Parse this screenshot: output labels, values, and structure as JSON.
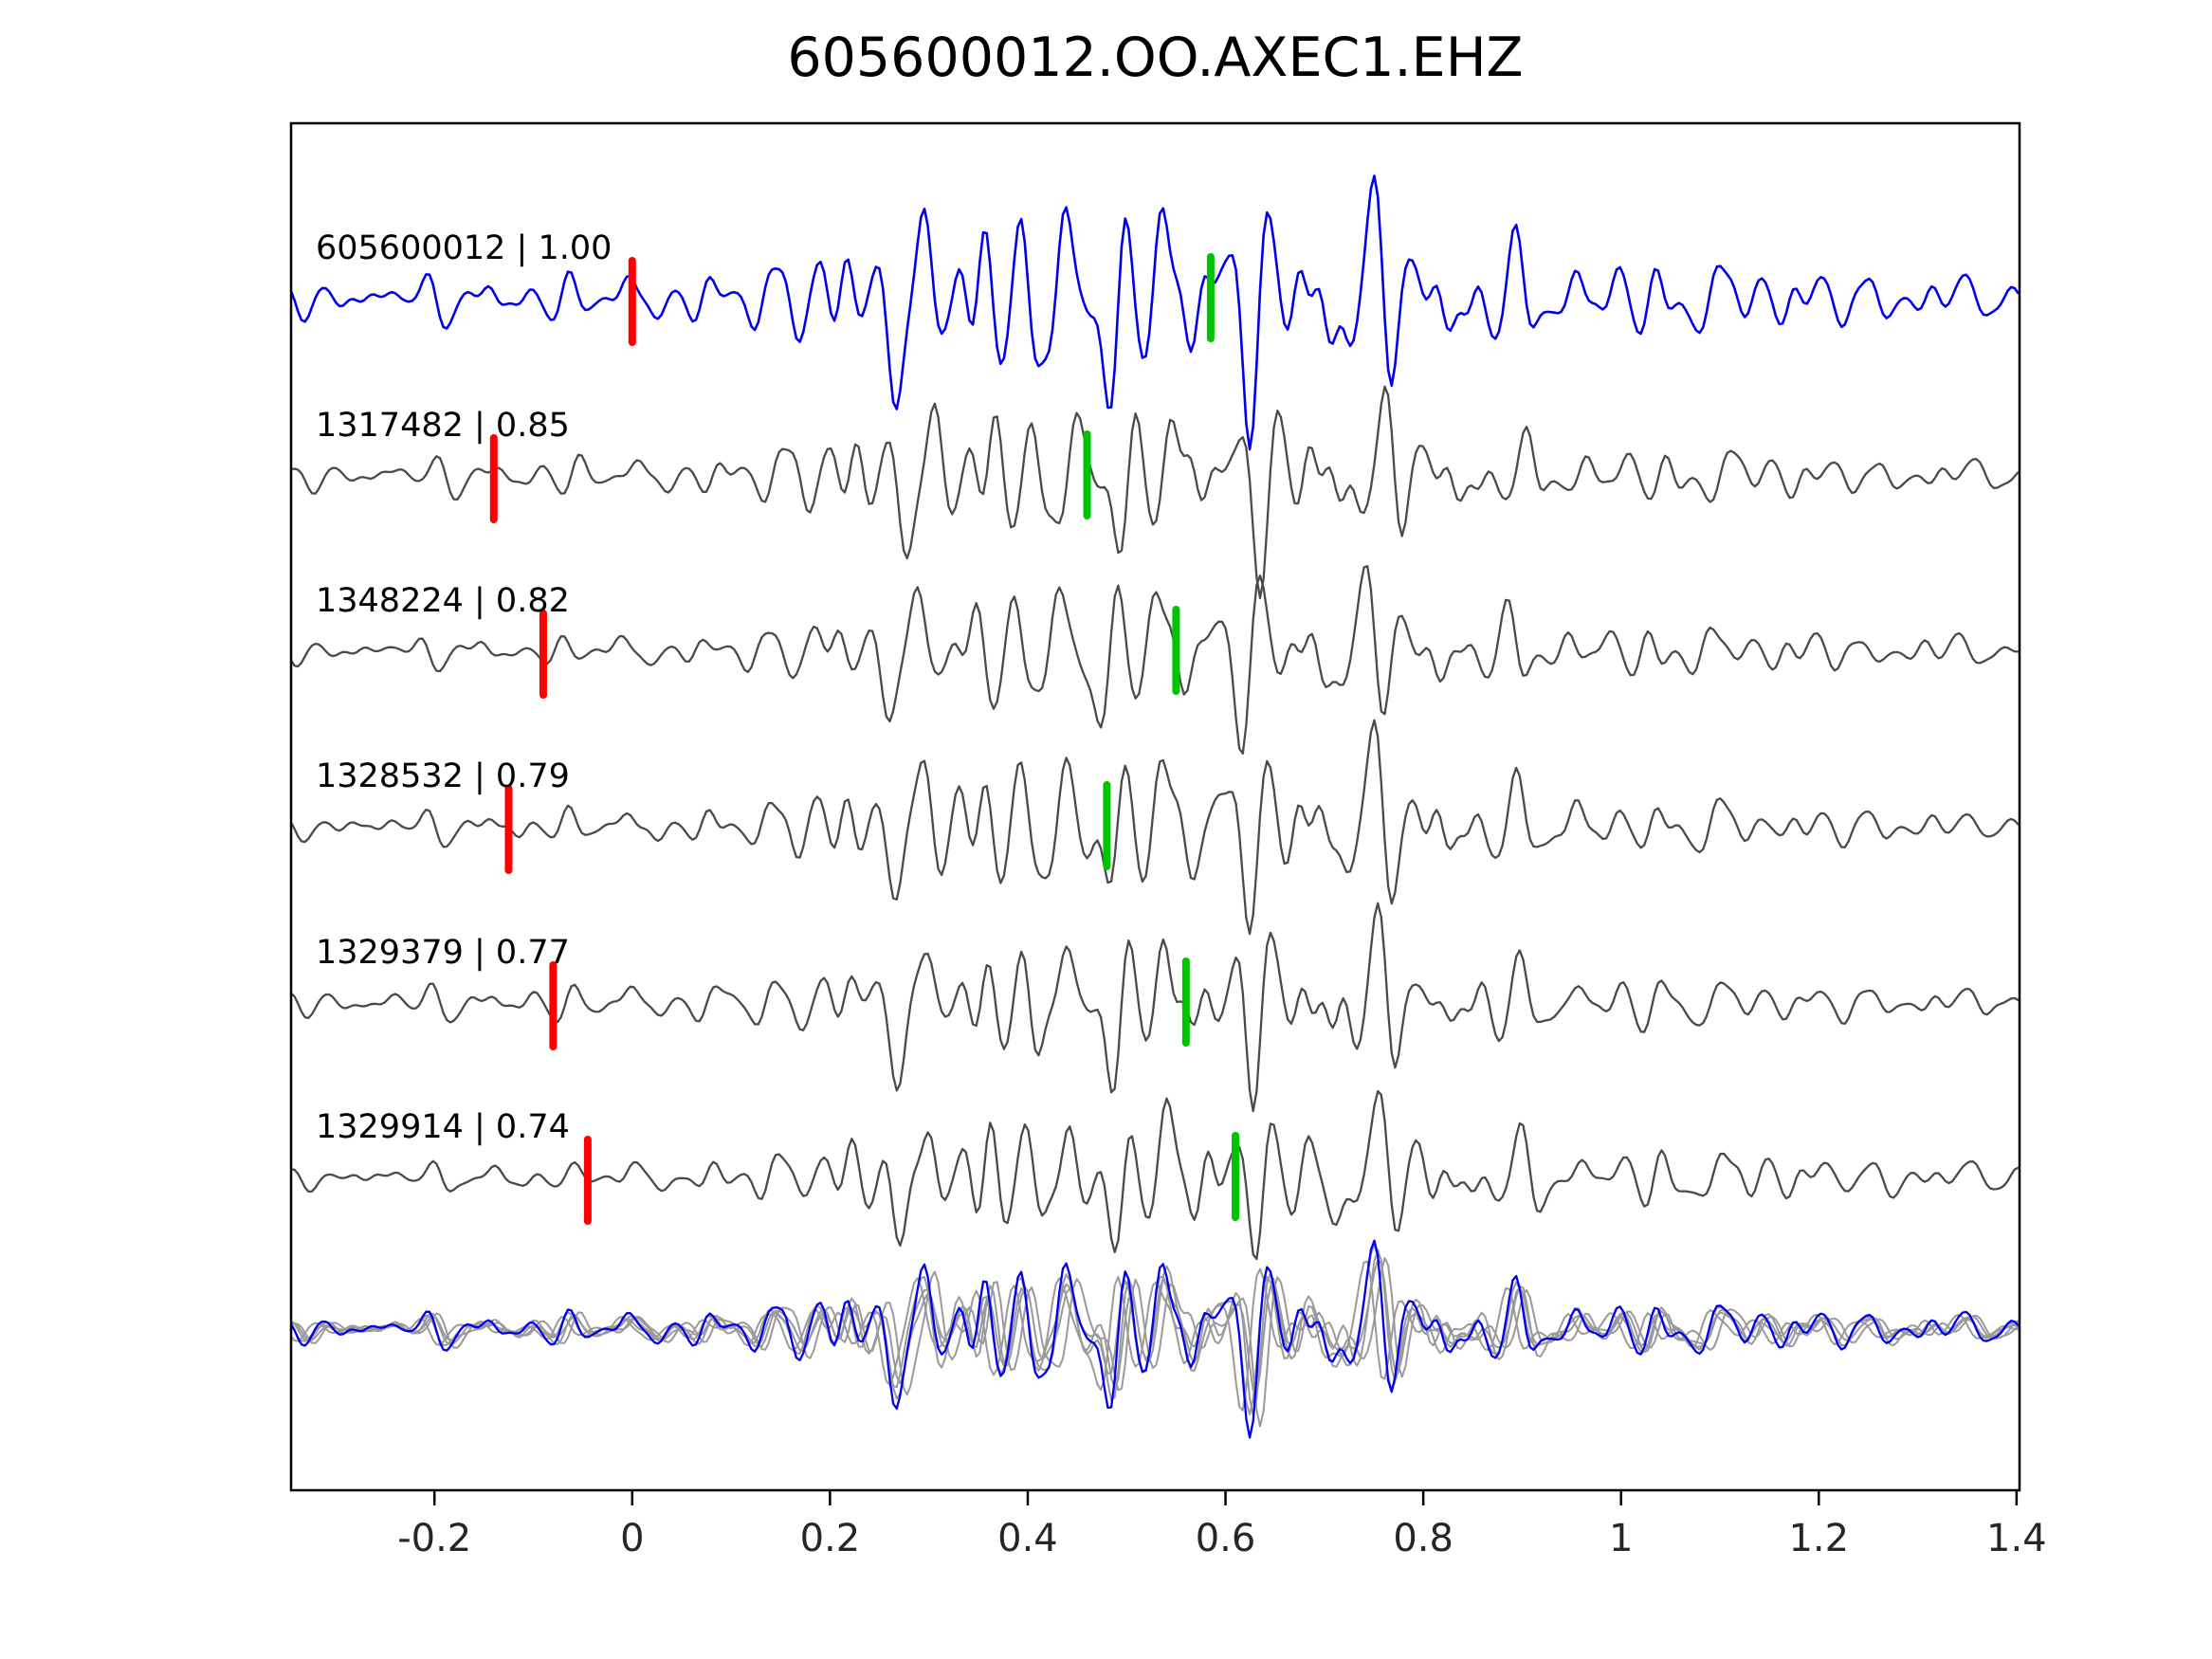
{
  "title": "605600012.OO.AXEC1.EHZ",
  "chart_data": {
    "type": "line",
    "title": "605600012.OO.AXEC1.EHZ",
    "xlabel": "",
    "ylabel": "",
    "xlim": [
      -0.345,
      1.403
    ],
    "grid": false,
    "legend": "none",
    "x_ticks": [
      {
        "value": -0.2,
        "label": "-0.2"
      },
      {
        "value": 0,
        "label": "0"
      },
      {
        "value": 0.2,
        "label": "0.2"
      },
      {
        "value": 0.4,
        "label": "0.4"
      },
      {
        "value": 0.6,
        "label": "0.6"
      },
      {
        "value": 0.8,
        "label": "0.8"
      },
      {
        "value": 1,
        "label": "1"
      },
      {
        "value": 1.2,
        "label": "1.2"
      },
      {
        "value": 1.4,
        "label": "1.4"
      }
    ],
    "traces": [
      {
        "id": "605600012",
        "correlation": 1.0,
        "label": "605600012 | 1.00",
        "color": "#0000ee",
        "pick_red_x": 0.0,
        "pick_green_x": 0.585
      },
      {
        "id": "1317482",
        "correlation": 0.85,
        "label": "1317482 | 0.85",
        "color": "#4a4a4a",
        "pick_red_x": -0.14,
        "pick_green_x": 0.46
      },
      {
        "id": "1348224",
        "correlation": 0.82,
        "label": "1348224 | 0.82",
        "color": "#4a4a4a",
        "pick_red_x": -0.09,
        "pick_green_x": 0.55
      },
      {
        "id": "1328532",
        "correlation": 0.79,
        "label": "1328532 | 0.79",
        "color": "#4a4a4a",
        "pick_red_x": -0.125,
        "pick_green_x": 0.48
      },
      {
        "id": "1329379",
        "correlation": 0.77,
        "label": "1329379 | 0.77",
        "color": "#4a4a4a",
        "pick_red_x": -0.08,
        "pick_green_x": 0.56
      },
      {
        "id": "1329914",
        "correlation": 0.74,
        "label": "1329914 | 0.74",
        "color": "#4a4a4a",
        "pick_red_x": -0.045,
        "pick_green_x": 0.61
      }
    ],
    "overlay_row": {
      "description": "all detection waveforms overlaid with template",
      "detection_color": "#9a9a9a",
      "template_color": "#0000ee"
    },
    "marker_colors": {
      "red_pick": "#ff0000",
      "green_pick": "#00c400"
    }
  }
}
